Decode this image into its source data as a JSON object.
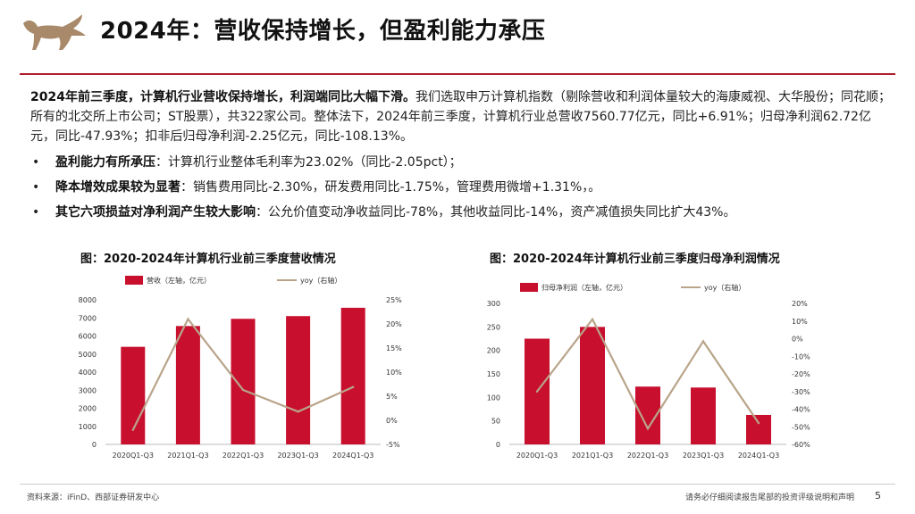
{
  "header": {
    "title": "2024年：营收保持增长，但盈利能力承压",
    "accent_color": "#b11c2a",
    "logo_icon": "bull-icon",
    "logo_color": "#a88a6a"
  },
  "summary": {
    "lead": "2024年前三季度，计算机行业营收保持增长，利润端同比大幅下滑。",
    "body": "我们选取申万计算机指数（剔除营收和利润体量较大的海康威视、大华股份；同花顺；所有的北交所上市公司；ST股票），共322家公司。整体法下，2024年前三季度，计算机行业总营收7560.77亿元，同比+6.91%；归母净利润62.72亿元，同比-47.93%；扣非后归母净利润-2.25亿元，同比-108.13%。"
  },
  "bullets": [
    {
      "head": "盈利能力有所承压",
      "text": "：计算机行业整体毛利率为23.02%（同比-2.05pct）；"
    },
    {
      "head": "降本增效成果较为显著",
      "text": "：销售费用同比-2.30%，研发费用同比-1.75%，管理费用微增+1.31%，。"
    },
    {
      "head": "其它六项损益对净利润产生较大影响",
      "text": "：公允价值变动净收益同比-78%，其他收益同比-14%，资产减值损失同比扩大43%。"
    }
  ],
  "chart_data": [
    {
      "type": "bar",
      "title": "图：2020-2024年计算机行业前三季度营收情况",
      "categories": [
        "2020Q1-Q3",
        "2021Q1-Q3",
        "2022Q1-Q3",
        "2023Q1-Q3",
        "2024Q1-Q3"
      ],
      "series": [
        {
          "name": "营收（左轴，亿元）",
          "type": "bar",
          "axis": "left",
          "color": "#c8102e",
          "values": [
            5400,
            6550,
            6950,
            7100,
            7560.77
          ]
        },
        {
          "name": "yoy（右轴）",
          "type": "line",
          "axis": "right",
          "color": "#b9a48a",
          "values": [
            -2.0,
            21.0,
            6.3,
            1.8,
            6.91
          ]
        }
      ],
      "left_axis": {
        "min": 0,
        "max": 8000,
        "ticks": [
          "0",
          "1000",
          "2000",
          "3000",
          "4000",
          "5000",
          "6000",
          "7000",
          "8000"
        ]
      },
      "right_axis": {
        "min": -5,
        "max": 25,
        "ticks": [
          "-5%",
          "0%",
          "5%",
          "10%",
          "15%",
          "20%",
          "25%"
        ]
      },
      "grid": false,
      "legend": "top"
    },
    {
      "type": "bar",
      "title": "图：2020-2024年计算机行业前三季度归母净利润情况",
      "categories": [
        "2020Q1-Q3",
        "2021Q1-Q3",
        "2022Q1-Q3",
        "2023Q1-Q3",
        "2024Q1-Q3"
      ],
      "series": [
        {
          "name": "归母净利润（左轴，亿元）",
          "type": "bar",
          "axis": "left",
          "color": "#c8102e",
          "values": [
            225,
            250,
            123,
            121,
            62.72
          ]
        },
        {
          "name": "yoy（右轴）",
          "type": "line",
          "axis": "right",
          "color": "#b9a48a",
          "values": [
            -30.0,
            11.0,
            -51.0,
            -1.5,
            -47.93
          ]
        }
      ],
      "left_axis": {
        "min": 0,
        "max": 300,
        "ticks": [
          "0",
          "50",
          "100",
          "150",
          "200",
          "250",
          "300"
        ]
      },
      "right_axis": {
        "min": -60,
        "max": 20,
        "ticks": [
          "-60%",
          "-50%",
          "-40%",
          "-30%",
          "-20%",
          "-10%",
          "0%",
          "10%",
          "20%"
        ]
      },
      "grid": false,
      "legend": "top"
    }
  ],
  "footer": {
    "source": "资料来源：iFinD、西部证券研发中心",
    "disclaimer": "请务必仔细阅读报告尾部的投资评级说明和声明",
    "page": "5"
  }
}
